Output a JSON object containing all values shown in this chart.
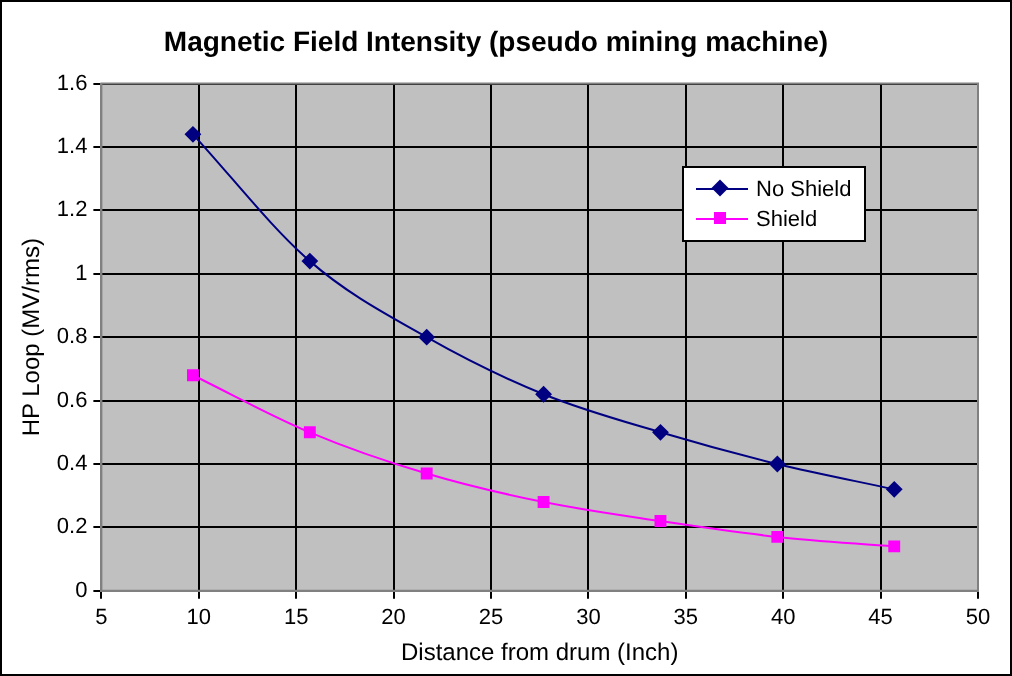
{
  "chart_data": {
    "type": "line",
    "title": "Magnetic Field Intensity (pseudo mining machine)",
    "xlabel": "Distance from drum (Inch)",
    "ylabel": "HP Loop (MV/rms)",
    "x": [
      9.7,
      15.7,
      21.7,
      27.7,
      33.7,
      39.7,
      45.7
    ],
    "series": [
      {
        "name": "No Shield",
        "color": "#000080",
        "marker": "diamond",
        "values": [
          1.44,
          1.04,
          0.8,
          0.62,
          0.5,
          0.4,
          0.32
        ]
      },
      {
        "name": "Shield",
        "color": "#ff00ff",
        "marker": "square",
        "values": [
          0.68,
          0.5,
          0.37,
          0.28,
          0.22,
          0.17,
          0.14
        ]
      }
    ],
    "xlim": [
      5,
      50
    ],
    "xticks": [
      5,
      10,
      15,
      20,
      25,
      30,
      35,
      40,
      45,
      50
    ],
    "ylim": [
      0,
      1.6
    ],
    "yticks": [
      0,
      0.2,
      0.4,
      0.6,
      0.8,
      1,
      1.2,
      1.4,
      1.6
    ],
    "grid": true,
    "legend": "top right",
    "line_style": "solid"
  }
}
